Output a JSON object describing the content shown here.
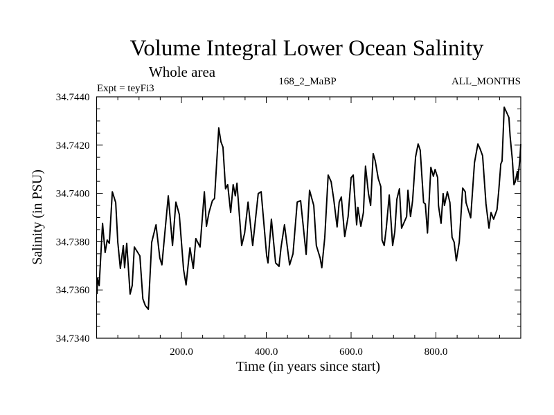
{
  "chart_data": {
    "type": "line",
    "title": "Volume Integral Lower Ocean Salinity",
    "subtitle": "Whole area",
    "annotations": {
      "left": "Expt = teyFi3",
      "center": "168_2_MaBP",
      "right": "ALL_MONTHS"
    },
    "xlabel": "Time (in years since start)",
    "ylabel": "Salinity (in PSU)",
    "xlim": [
      0,
      1000
    ],
    "ylim": [
      34.734,
      34.744
    ],
    "x_ticks": [
      200,
      400,
      600,
      800
    ],
    "x_tick_labels": [
      "200.0",
      "400.0",
      "600.0",
      "800.0"
    ],
    "x_minor_step": 50,
    "y_ticks": [
      34.734,
      34.736,
      34.738,
      34.74,
      34.742,
      34.744
    ],
    "y_tick_labels": [
      "34.7340",
      "34.7360",
      "34.7380",
      "34.7400",
      "34.7420",
      "34.7440"
    ],
    "y_minor_step": 0.0005,
    "grid": false,
    "legend": "none",
    "line_color": "#000000",
    "series": [
      {
        "name": "Salinity",
        "x": [
          1,
          2,
          6,
          14,
          20,
          25,
          30,
          37,
          45,
          50,
          56,
          63,
          66,
          71,
          79,
          84,
          89,
          102,
          109,
          115,
          122,
          130,
          140,
          149,
          154,
          169,
          179,
          187,
          195,
          205,
          211,
          220,
          228,
          234,
          244,
          254,
          259,
          265,
          273,
          278,
          288,
          293,
          298,
          304,
          309,
          316,
          322,
          327,
          331,
          342,
          349,
          357,
          368,
          381,
          388,
          401,
          404,
          412,
          422,
          430,
          435,
          443,
          455,
          463,
          473,
          481,
          494,
          502,
          512,
          518,
          527,
          531,
          538,
          546,
          553,
          559,
          567,
          572,
          577,
          585,
          593,
          600,
          605,
          613,
          616,
          623,
          629,
          634,
          641,
          646,
          652,
          657,
          664,
          670,
          673,
          678,
          683,
          690,
          698,
          703,
          708,
          714,
          719,
          731,
          734,
          740,
          745,
          752,
          758,
          763,
          771,
          775,
          780,
          788,
          794,
          798,
          804,
          806,
          812,
          817,
          820,
          827,
          833,
          838,
          843,
          848,
          855,
          863,
          869,
          871,
          882,
          891,
          899,
          904,
          910,
          918,
          925,
          930,
          936,
          944,
          948,
          953,
          956,
          961,
          967,
          972,
          975,
          980,
          984,
          987,
          992,
          993,
          998,
          1000
        ],
        "y": [
          34.73583,
          34.73649,
          34.73618,
          34.73876,
          34.73755,
          34.73807,
          34.73793,
          34.74007,
          34.73962,
          34.73798,
          34.73689,
          34.73784,
          34.73692,
          34.73793,
          34.73583,
          34.73618,
          34.73778,
          34.73741,
          34.73563,
          34.73535,
          34.7352,
          34.73798,
          34.7387,
          34.73732,
          34.73704,
          34.7399,
          34.73784,
          34.73964,
          34.73913,
          34.73684,
          34.73621,
          34.73775,
          34.73689,
          34.73813,
          34.73778,
          34.74007,
          34.73864,
          34.73921,
          34.7397,
          34.73979,
          34.74271,
          34.74214,
          34.74191,
          34.74019,
          34.74036,
          34.73921,
          34.74036,
          34.7399,
          34.74042,
          34.73784,
          34.73836,
          34.73964,
          34.73784,
          34.73999,
          34.74007,
          34.73741,
          34.73712,
          34.73893,
          34.73712,
          34.73698,
          34.73778,
          34.7387,
          34.73704,
          34.7375,
          34.73964,
          34.7397,
          34.73747,
          34.74013,
          34.7395,
          34.73784,
          34.73732,
          34.73692,
          34.73818,
          34.74076,
          34.74048,
          34.73976,
          34.73861,
          34.73964,
          34.73985,
          34.73821,
          34.73904,
          34.74065,
          34.74076,
          34.7387,
          34.73942,
          34.73864,
          34.73921,
          34.74113,
          34.73999,
          34.7395,
          34.74165,
          34.74134,
          34.74062,
          34.74028,
          34.73807,
          34.73784,
          34.73856,
          34.73993,
          34.73784,
          34.73841,
          34.73976,
          34.74019,
          34.73856,
          34.73904,
          34.74013,
          34.73904,
          34.7397,
          34.74151,
          34.74205,
          34.74179,
          34.73962,
          34.73956,
          34.73836,
          34.74108,
          34.74071,
          34.74099,
          34.74065,
          34.7395,
          34.73876,
          34.73999,
          34.7395,
          34.74007,
          34.73962,
          34.73818,
          34.73798,
          34.73721,
          34.73798,
          34.74022,
          34.74007,
          34.73962,
          34.73899,
          34.74128,
          34.74205,
          34.74185,
          34.74156,
          34.73956,
          34.73856,
          34.73921,
          34.73893,
          34.73933,
          34.74007,
          34.74122,
          34.74134,
          34.74357,
          34.74334,
          34.74314,
          34.74234,
          34.74142,
          34.74036,
          34.74048,
          34.74091,
          34.74056,
          34.74142,
          34.74205
        ]
      }
    ]
  }
}
